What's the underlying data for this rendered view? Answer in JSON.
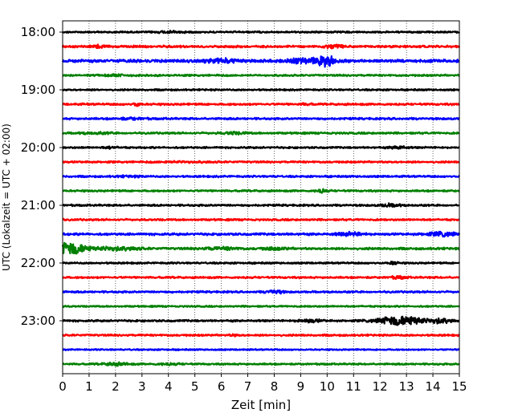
{
  "chart_data": {
    "type": "line",
    "xlabel": "Zeit  [min]",
    "ylabel": "UTC (Lokalzeit = UTC + 02:00)",
    "xlim": [
      0,
      15
    ],
    "x_ticks": [
      "0",
      "1",
      "2",
      "3",
      "4",
      "5",
      "6",
      "7",
      "8",
      "9",
      "10",
      "11",
      "12",
      "13",
      "14",
      "15"
    ],
    "y_ticks": [
      "18:00",
      "19:00",
      "20:00",
      "21:00",
      "22:00",
      "23:00"
    ],
    "grid": "vertical dotted",
    "trace_colors": [
      "#000000",
      "#ff0000",
      "#0000ff",
      "#008000"
    ],
    "rows": [
      {
        "start": "18:00",
        "amp": 0.25,
        "events": [
          [
            4.1,
            0.5,
            0.5
          ]
        ]
      },
      {
        "start": "18:15",
        "amp": 0.4,
        "events": [
          [
            1.4,
            0.6,
            0.3
          ],
          [
            10.2,
            0.7,
            0.4
          ]
        ]
      },
      {
        "start": "18:30",
        "amp": 0.6,
        "events": [
          [
            6.0,
            1.0,
            0.6
          ],
          [
            9.3,
            1.2,
            0.8
          ],
          [
            10.0,
            2.2,
            0.3
          ]
        ]
      },
      {
        "start": "18:45",
        "amp": 0.3,
        "events": [
          [
            2.0,
            0.4,
            0.5
          ]
        ]
      },
      {
        "start": "19:00",
        "amp": 0.25,
        "events": []
      },
      {
        "start": "19:15",
        "amp": 0.35,
        "events": [
          [
            2.8,
            0.8,
            0.15
          ],
          [
            9.2,
            0.4,
            0.2
          ]
        ]
      },
      {
        "start": "19:30",
        "amp": 0.35,
        "events": [
          [
            2.6,
            0.4,
            0.5
          ]
        ]
      },
      {
        "start": "19:45",
        "amp": 0.3,
        "events": [
          [
            1.2,
            0.4,
            0.6
          ],
          [
            6.5,
            0.5,
            0.5
          ]
        ]
      },
      {
        "start": "20:00",
        "amp": 0.25,
        "events": [
          [
            1.8,
            0.4,
            0.3
          ],
          [
            12.7,
            0.8,
            0.3
          ]
        ]
      },
      {
        "start": "20:15",
        "amp": 0.3,
        "events": [
          [
            4.5,
            0.3,
            1.0
          ]
        ]
      },
      {
        "start": "20:30",
        "amp": 0.3,
        "events": [
          [
            2.5,
            0.3,
            0.5
          ]
        ]
      },
      {
        "start": "20:45",
        "amp": 0.3,
        "events": [
          [
            9.8,
            0.9,
            0.2
          ]
        ]
      },
      {
        "start": "21:00",
        "amp": 0.3,
        "events": [
          [
            12.4,
            0.7,
            0.4
          ]
        ]
      },
      {
        "start": "21:15",
        "amp": 0.3,
        "events": []
      },
      {
        "start": "21:30",
        "amp": 0.4,
        "events": [
          [
            10.9,
            0.8,
            0.5
          ],
          [
            14.4,
            1.0,
            0.6
          ]
        ]
      },
      {
        "start": "21:45",
        "amp": 0.4,
        "events": [
          [
            0.3,
            3.2,
            0.6
          ],
          [
            2.0,
            1.0,
            0.8
          ],
          [
            6.0,
            0.6,
            0.7
          ],
          [
            8.0,
            0.5,
            0.5
          ]
        ]
      },
      {
        "start": "22:00",
        "amp": 0.25,
        "events": [
          [
            12.5,
            0.6,
            0.2
          ]
        ]
      },
      {
        "start": "22:15",
        "amp": 0.3,
        "events": [
          [
            12.7,
            0.6,
            0.3
          ]
        ]
      },
      {
        "start": "22:30",
        "amp": 0.3,
        "events": [
          [
            8.0,
            1.0,
            0.3
          ]
        ]
      },
      {
        "start": "22:45",
        "amp": 0.2,
        "events": []
      },
      {
        "start": "23:00",
        "amp": 0.3,
        "events": [
          [
            9.3,
            0.7,
            0.5
          ],
          [
            12.8,
            2.5,
            0.9
          ],
          [
            14.3,
            1.3,
            0.4
          ]
        ]
      },
      {
        "start": "23:15",
        "amp": 0.3,
        "events": [
          [
            6.5,
            0.4,
            0.2
          ]
        ]
      },
      {
        "start": "23:30",
        "amp": 0.15,
        "events": []
      },
      {
        "start": "23:45",
        "amp": 0.25,
        "events": [
          [
            2.0,
            0.7,
            0.5
          ],
          [
            4.0,
            0.4,
            0.5
          ]
        ]
      }
    ]
  }
}
